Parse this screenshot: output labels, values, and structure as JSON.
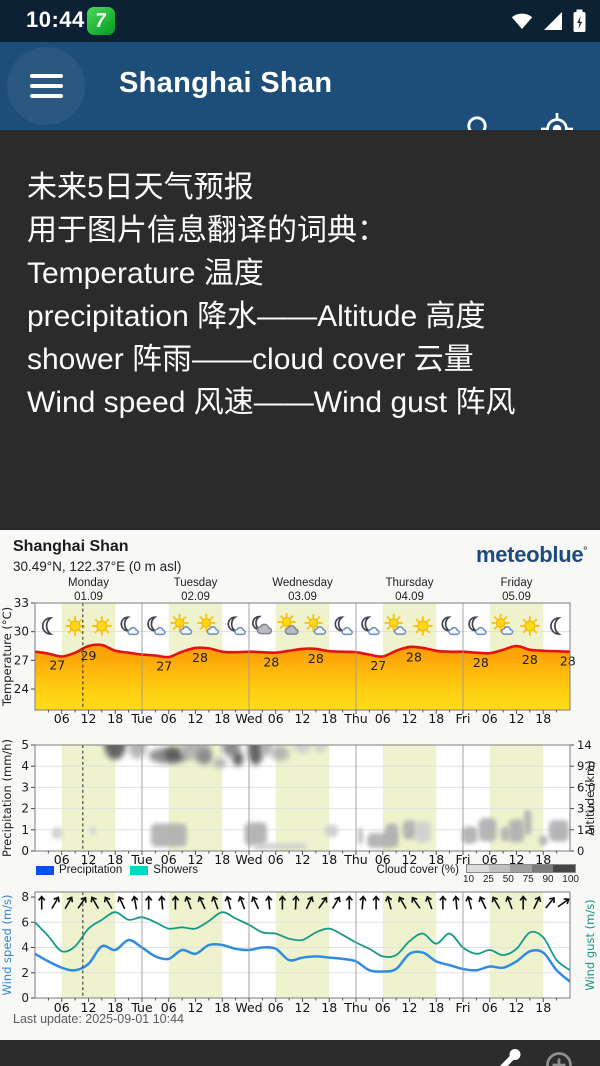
{
  "status_bar": {
    "time": "10:44",
    "badge_label": "7"
  },
  "app_bar": {
    "title": "Shanghai Shan"
  },
  "note_panel": {
    "lines": [
      "未来5日天气预报",
      "用于图片信息翻译的词典：",
      "Temperature 温度",
      "precipitation 降水——Altitude 高度",
      "shower 阵雨——cloud cover 云量",
      "Wind speed 风速——Wind gust 阵风"
    ]
  },
  "meteogram": {
    "location": "Shanghai Shan",
    "coords": "30.49°N, 122.37°E (0 m asl)",
    "brand": "meteoblue",
    "brand_mark": "°",
    "last_update": "Last update: 2025-09-01 10:44",
    "now_hour": 10.73,
    "days": [
      {
        "name": "Monday",
        "date": "01.09"
      },
      {
        "name": "Tuesday",
        "date": "02.09"
      },
      {
        "name": "Wednesday",
        "date": "03.09"
      },
      {
        "name": "Thursday",
        "date": "04.09"
      },
      {
        "name": "Friday",
        "date": "05.09"
      }
    ],
    "x_axis": {
      "hour_labels": [
        "06",
        "12",
        "18"
      ],
      "day_boundary_labels": [
        "Tue",
        "Wed",
        "Thu",
        "Fri"
      ]
    },
    "legend": {
      "precipitation": "Precipitation",
      "showers": "Showers",
      "cloud_cover": "Cloud cover (%)",
      "cloud_cover_ticks": [
        "10",
        "25",
        "50",
        "75",
        "90",
        "100"
      ],
      "precip_color": "#0051f0",
      "showers_color": "#00d7be",
      "cloud_shades": [
        "#dcdcdc",
        "#c0c0c0",
        "#a0a0a0",
        "#7a7a7a",
        "#454545"
      ]
    },
    "chart_data": [
      {
        "type": "area",
        "ylabel": "Temperature (°C)",
        "yticks": [
          33,
          30,
          27,
          24
        ],
        "ylim": [
          21.8,
          33
        ],
        "x_step_hours": 3,
        "line_color": "#e90f0f",
        "fill_colors": [
          "#f89b03",
          "#fca408",
          "#ffbb0d",
          "#ffd012",
          "#ffdc18"
        ],
        "values": [
          27.9,
          27.7,
          27.4,
          27.8,
          28.5,
          28.6,
          28.0,
          27.8,
          27.6,
          27.5,
          27.35,
          27.9,
          28.3,
          28.25,
          27.9,
          27.85,
          27.9,
          27.85,
          27.8,
          28.0,
          28.2,
          28.2,
          27.95,
          27.9,
          27.85,
          27.6,
          27.4,
          28.0,
          28.4,
          28.3,
          28.0,
          27.9,
          27.9,
          27.8,
          27.75,
          28.1,
          28.5,
          28.1,
          28.0,
          27.95,
          27.9
        ],
        "point_labels": [
          [
            5,
            "27"
          ],
          [
            12,
            "29"
          ],
          [
            29,
            "27"
          ],
          [
            37,
            "28"
          ],
          [
            53,
            "28"
          ],
          [
            63,
            "28"
          ],
          [
            77,
            "27"
          ],
          [
            85,
            "28"
          ],
          [
            100,
            "28"
          ],
          [
            111,
            "28"
          ],
          [
            119.5,
            "28"
          ]
        ],
        "weather_icons": [
          [
            3,
            "moon"
          ],
          [
            9,
            "sun"
          ],
          [
            15,
            "sun"
          ],
          [
            21,
            "moon-cloud"
          ],
          [
            27,
            "moon-cloud"
          ],
          [
            33,
            "sun-cloud"
          ],
          [
            39,
            "sun-cloud"
          ],
          [
            45,
            "moon-cloud"
          ],
          [
            51,
            "cloud-moon"
          ],
          [
            57,
            "sun-graycloud"
          ],
          [
            63,
            "sun-cloud"
          ],
          [
            69,
            "moon-cloud"
          ],
          [
            75,
            "moon-cloud"
          ],
          [
            81,
            "sun-cloud"
          ],
          [
            87,
            "sun"
          ],
          [
            93,
            "moon-cloud"
          ],
          [
            99,
            "moon-cloud"
          ],
          [
            105,
            "sun-cloud"
          ],
          [
            111,
            "sun"
          ],
          [
            117,
            "moon"
          ]
        ]
      },
      {
        "type": "clouds",
        "ylabel_left": "Precipitation (mm/h)",
        "yticks_left": [
          0,
          1,
          2,
          3,
          4,
          5
        ],
        "ylabel_right": "Altitude (km)",
        "yticks_right": [
          "0",
          "1.5",
          "3.5",
          "6.0",
          "9.0",
          "14"
        ],
        "cloud_blobs": [
          [
            18,
            5.1,
            5,
            1.6,
            3
          ],
          [
            23,
            4.85,
            4,
            1.0,
            1
          ],
          [
            30,
            4.5,
            9,
            0.75,
            2
          ],
          [
            31,
            4.55,
            4,
            0.6,
            3
          ],
          [
            36,
            4.75,
            7,
            0.9,
            1
          ],
          [
            38,
            4.45,
            3.5,
            0.75,
            2
          ],
          [
            41.5,
            4.15,
            3,
            0.5,
            1
          ],
          [
            44,
            4.9,
            4,
            0.9,
            2
          ],
          [
            45.5,
            4.35,
            2.5,
            0.7,
            3
          ],
          [
            49.5,
            4.8,
            3.5,
            1.5,
            3
          ],
          [
            52,
            4.9,
            3,
            0.8,
            1
          ],
          [
            55,
            4.6,
            4,
            0.7,
            1
          ],
          [
            60,
            4.95,
            4,
            0.7,
            0
          ],
          [
            64,
            4.9,
            3,
            0.5,
            0
          ],
          [
            5,
            0.85,
            2.5,
            0.55,
            0
          ],
          [
            13,
            0.95,
            1.2,
            0.45,
            0
          ],
          [
            30,
            0.75,
            8,
            1.1,
            1
          ],
          [
            49.5,
            0.8,
            5,
            1.1,
            1
          ],
          [
            55,
            0.22,
            12,
            0.3,
            0
          ],
          [
            66.5,
            0.95,
            3,
            0.6,
            0
          ],
          [
            73,
            0.7,
            1,
            0.8,
            1
          ],
          [
            78,
            0.5,
            7,
            0.7,
            1
          ],
          [
            80,
            0.9,
            3,
            0.8,
            1
          ],
          [
            84,
            1.0,
            3,
            0.9,
            1
          ],
          [
            87,
            0.9,
            3.5,
            1.0,
            0
          ],
          [
            97.5,
            0.75,
            3.5,
            0.8,
            1
          ],
          [
            101.5,
            1.0,
            4,
            1.1,
            1
          ],
          [
            105.5,
            0.8,
            2,
            0.7,
            1
          ],
          [
            108,
            0.95,
            3.5,
            1.1,
            1
          ],
          [
            110.5,
            1.35,
            1.6,
            1.2,
            1
          ],
          [
            114,
            0.5,
            2,
            0.5,
            1
          ],
          [
            117.5,
            0.95,
            4.5,
            1.0,
            1
          ]
        ]
      },
      {
        "type": "line",
        "ylabel_left": "Wind speed (m/s)",
        "ylabel_right": "Wind gust (m/s)",
        "yticks": [
          0,
          2,
          4,
          6,
          8
        ],
        "ylim": [
          0,
          8.4
        ],
        "x_step_hours": 3,
        "series": [
          {
            "name": "Wind speed",
            "color": "#2f8ce2",
            "values": [
              3.5,
              2.9,
              2.4,
              2.2,
              2.7,
              4.1,
              3.8,
              4.6,
              4.0,
              3.3,
              3.1,
              3.8,
              3.5,
              4.2,
              4.2,
              3.9,
              3.8,
              4.0,
              3.9,
              3.0,
              3.2,
              3.3,
              3.2,
              3.1,
              2.9,
              2.2,
              2.1,
              2.3,
              3.5,
              3.6,
              2.9,
              2.6,
              2.3,
              2.2,
              2.5,
              2.4,
              2.9,
              3.7,
              3.6,
              2.2,
              1.3
            ]
          },
          {
            "name": "Wind gust",
            "color": "#179a8a",
            "values": [
              6.0,
              4.9,
              3.7,
              4.1,
              5.5,
              6.2,
              6.8,
              6.2,
              6.4,
              6.0,
              5.5,
              5.6,
              5.5,
              6.1,
              6.8,
              6.3,
              5.8,
              5.2,
              5.1,
              4.7,
              4.6,
              5.2,
              5.5,
              5.0,
              4.4,
              3.9,
              3.3,
              3.4,
              4.5,
              5.1,
              4.3,
              5.1,
              4.0,
              3.5,
              3.8,
              3.4,
              3.9,
              5.2,
              4.8,
              3.0,
              2.2
            ]
          }
        ],
        "arrow_angles_deg": [
          0,
          30,
          30,
          35,
          -30,
          -30,
          -25,
          -10,
          0,
          -5,
          0,
          -20,
          -25,
          -20,
          -15,
          -20,
          -25,
          -5,
          0,
          3,
          25,
          35,
          30,
          0,
          5,
          0,
          -15,
          -30,
          -35,
          -20,
          0,
          -5,
          -15,
          -25,
          -30,
          -20,
          0,
          25,
          40,
          55
        ]
      }
    ]
  },
  "bottom_bar": {
    "icons": [
      "share-icon",
      "add-circle-icon"
    ]
  }
}
